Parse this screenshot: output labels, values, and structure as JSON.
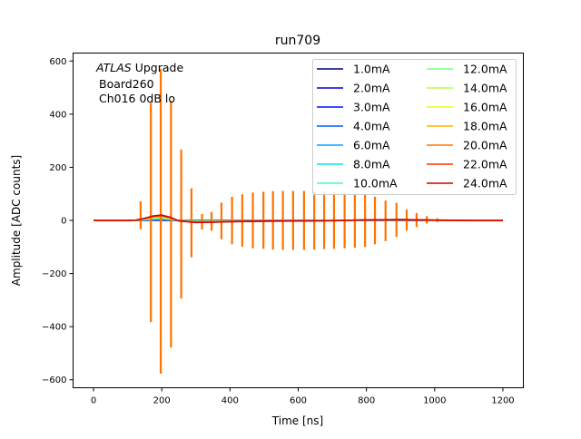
{
  "chart_data": {
    "type": "line",
    "title": "run709",
    "xlabel": "Time [ns]",
    "ylabel": "Amplitude [ADC counts]",
    "xlim": [
      -60,
      1260
    ],
    "ylim": [
      -630,
      630
    ],
    "xticks": [
      0,
      200,
      400,
      600,
      800,
      1000,
      1200
    ],
    "yticks": [
      -600,
      -400,
      -200,
      0,
      200,
      400,
      600
    ],
    "grid": false,
    "legend_placement": "top-right",
    "legend_columns": 2,
    "annotation": {
      "italic": "ATLAS",
      "line1_rest": " Upgrade",
      "line2": "Board260",
      "line3": "Ch016 0dB lo"
    },
    "x": [
      0,
      50,
      100,
      125,
      150,
      175,
      200,
      225,
      250,
      300,
      350,
      400,
      500,
      600,
      700,
      800,
      900,
      1000,
      1100,
      1200
    ],
    "series": [
      {
        "name": "1.0mA",
        "color": "#00007f",
        "y": [
          0,
          0,
          0,
          0,
          0.3,
          0.7,
          0.8,
          0.5,
          -0.1,
          -0.3,
          -0.3,
          -0.2,
          -0.1,
          -0.1,
          0,
          0.1,
          0.1,
          0,
          0,
          0
        ]
      },
      {
        "name": "2.0mA",
        "color": "#0000d1",
        "y": [
          0,
          0,
          0,
          0.1,
          0.7,
          1.4,
          1.7,
          1,
          -0.2,
          -0.7,
          -0.6,
          -0.4,
          -0.3,
          -0.2,
          -0.1,
          0.2,
          0.3,
          0.1,
          0,
          0
        ]
      },
      {
        "name": "3.0mA",
        "color": "#0010ff",
        "y": [
          0,
          0,
          0,
          0.1,
          1,
          2.1,
          2.5,
          1.5,
          -0.3,
          -1,
          -0.9,
          -0.6,
          -0.4,
          -0.3,
          -0.1,
          0.3,
          0.4,
          0.1,
          0,
          0
        ]
      },
      {
        "name": "4.0mA",
        "color": "#0058ff",
        "y": [
          0,
          0,
          0,
          0.2,
          1.3,
          2.8,
          3.3,
          2,
          -0.3,
          -1.3,
          -1.2,
          -0.8,
          -0.5,
          -0.3,
          -0.2,
          0.3,
          0.5,
          0.2,
          0,
          0
        ]
      },
      {
        "name": "6.0mA",
        "color": "#00a4ff",
        "y": [
          0,
          0,
          0,
          0.3,
          2,
          4.3,
          5,
          3,
          -0.5,
          -2,
          -1.8,
          -1.3,
          -0.8,
          -0.5,
          -0.3,
          0.5,
          0.8,
          0.3,
          0,
          0
        ]
      },
      {
        "name": "8.0mA",
        "color": "#0de0ef",
        "y": [
          0,
          0,
          0,
          0.3,
          2.7,
          5.7,
          6.7,
          4,
          -0.7,
          -2.7,
          -2.3,
          -1.7,
          -1,
          -0.7,
          -0.3,
          0.7,
          1,
          0.3,
          0,
          0
        ]
      },
      {
        "name": "10.0mA",
        "color": "#3dffba",
        "y": [
          0,
          0,
          0,
          0.4,
          3.3,
          7.1,
          8.3,
          5,
          -0.8,
          -3.3,
          -2.9,
          -2.1,
          -1.3,
          -0.8,
          -0.4,
          0.8,
          1.3,
          0.4,
          0,
          0
        ]
      },
      {
        "name": "12.0mA",
        "color": "#7aff7d",
        "y": [
          0,
          0,
          0,
          0.5,
          4,
          8.5,
          10,
          6,
          -1,
          -4,
          -3.5,
          -2.5,
          -1.5,
          -1,
          -0.5,
          1,
          1.5,
          0.5,
          0,
          0
        ]
      },
      {
        "name": "14.0mA",
        "color": "#b4ff43",
        "y": [
          0,
          0,
          0,
          0.6,
          4.7,
          9.9,
          11.7,
          7,
          -1.2,
          -4.7,
          -4.1,
          -2.9,
          -1.8,
          -1.2,
          -0.6,
          1.2,
          1.8,
          0.6,
          0,
          0
        ]
      },
      {
        "name": "16.0mA",
        "color": "#f1fc06",
        "y": [
          0,
          0,
          0,
          0.7,
          5.3,
          11.3,
          13.3,
          8,
          -1.3,
          -5.3,
          -4.7,
          -3.3,
          -2,
          -1.3,
          -0.7,
          1.3,
          2,
          0.7,
          0,
          0
        ]
      },
      {
        "name": "18.0mA",
        "color": "#ffb300",
        "y": [
          0,
          0,
          0,
          0.8,
          6,
          12.8,
          15,
          9,
          -1.5,
          -6,
          -5.3,
          -3.8,
          -2.3,
          -1.5,
          -0.8,
          1.5,
          2.3,
          0.8,
          0,
          0
        ]
      },
      {
        "name": "20.0mA",
        "color": "#ff7300",
        "y": [
          0,
          0,
          0,
          0.8,
          6.7,
          14.2,
          16.7,
          10,
          -1.7,
          -6.7,
          -5.8,
          -4.2,
          -2.5,
          -1.7,
          -0.8,
          1.7,
          2.5,
          0.8,
          0,
          0
        ],
        "spikes": [
          [
            138,
            72,
            -33
          ],
          [
            168,
            443,
            -383
          ],
          [
            197,
            571,
            -577
          ],
          [
            227,
            450,
            -479
          ],
          [
            257,
            267,
            -294
          ],
          [
            287,
            121,
            -139
          ],
          [
            318,
            24,
            -34
          ],
          [
            346,
            32,
            -39
          ],
          [
            375,
            67,
            -71
          ],
          [
            406,
            89,
            -90
          ],
          [
            436,
            98,
            -99
          ],
          [
            467,
            105,
            -105
          ],
          [
            498,
            108,
            -107
          ],
          [
            526,
            110,
            -110
          ],
          [
            555,
            111,
            -111
          ],
          [
            585,
            111,
            -111
          ],
          [
            617,
            111,
            -111
          ],
          [
            647,
            109,
            -110
          ],
          [
            676,
            108,
            -108
          ],
          [
            705,
            106,
            -107
          ],
          [
            736,
            104,
            -105
          ],
          [
            766,
            102,
            -103
          ],
          [
            796,
            98,
            -100
          ],
          [
            825,
            89,
            -90
          ],
          [
            856,
            75,
            -78
          ],
          [
            888,
            66,
            -62
          ],
          [
            918,
            41,
            -39
          ],
          [
            947,
            28,
            -25
          ],
          [
            977,
            16,
            -12
          ],
          [
            1008,
            8,
            -6
          ],
          [
            1037,
            4,
            -3
          ],
          [
            1064,
            2,
            -1
          ]
        ]
      },
      {
        "name": "22.0mA",
        "color": "#ff3000",
        "y": [
          0,
          0,
          0,
          0.9,
          7.3,
          15.6,
          18.3,
          11,
          -1.8,
          -7.3,
          -6.4,
          -4.6,
          -2.8,
          -1.8,
          -0.9,
          1.8,
          2.8,
          0.9,
          0,
          0
        ]
      },
      {
        "name": "24.0mA",
        "color": "#d40000",
        "y": [
          0,
          0,
          0,
          1,
          8,
          17,
          20,
          12,
          -2,
          -8,
          -7,
          -5,
          -3,
          -2,
          -1,
          2,
          3,
          1,
          0,
          0
        ]
      }
    ]
  }
}
